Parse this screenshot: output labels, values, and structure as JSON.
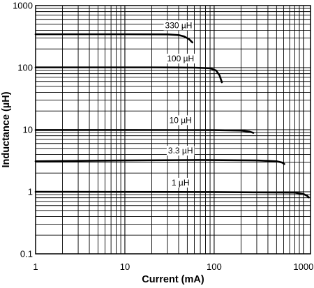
{
  "chart_data": {
    "type": "line",
    "xlabel": "Current (mA)",
    "ylabel": "Inductance (µH)",
    "x_scale": "log",
    "y_scale": "log",
    "xlim": [
      1,
      1200
    ],
    "ylim": [
      0.1,
      1000
    ],
    "grid": true,
    "x_ticks": [
      {
        "value": 1,
        "label": "1"
      },
      {
        "value": 10,
        "label": "10"
      },
      {
        "value": 100,
        "label": "100"
      },
      {
        "value": 1000,
        "label": "1000"
      }
    ],
    "y_ticks": [
      {
        "value": 1000,
        "label": "1000"
      },
      {
        "value": 100,
        "label": "100"
      },
      {
        "value": 10,
        "label": "10"
      },
      {
        "value": 1,
        "label": "1"
      },
      {
        "value": 0.1,
        "label": "0.1"
      }
    ],
    "series": [
      {
        "name": "330 µH",
        "label_at": [
          40,
          480
        ],
        "points": [
          [
            1,
            345
          ],
          [
            10,
            345
          ],
          [
            30,
            343
          ],
          [
            40,
            335
          ],
          [
            46,
            318
          ],
          [
            52,
            290
          ],
          [
            57,
            255
          ]
        ]
      },
      {
        "name": "100 µH",
        "label_at": [
          42,
          140
        ],
        "points": [
          [
            1,
            101
          ],
          [
            20,
            101
          ],
          [
            60,
            100
          ],
          [
            90,
            98
          ],
          [
            105,
            90
          ],
          [
            115,
            75
          ],
          [
            122,
            58
          ]
        ]
      },
      {
        "name": "10 µH",
        "label_at": [
          42,
          14.2
        ],
        "points": [
          [
            1,
            9.9
          ],
          [
            10,
            9.9
          ],
          [
            100,
            9.85
          ],
          [
            200,
            9.7
          ],
          [
            250,
            9.3
          ],
          [
            275,
            8.9
          ]
        ]
      },
      {
        "name": "3.3 µH",
        "label_at": [
          42,
          4.6
        ],
        "points": [
          [
            1,
            3.1
          ],
          [
            10,
            3.2
          ],
          [
            70,
            3.25
          ],
          [
            300,
            3.2
          ],
          [
            500,
            3.1
          ],
          [
            580,
            2.95
          ],
          [
            610,
            2.8
          ]
        ]
      },
      {
        "name": "1 µH",
        "label_at": [
          42,
          1.4
        ],
        "points": [
          [
            1,
            1.0
          ],
          [
            100,
            0.99
          ],
          [
            800,
            0.97
          ],
          [
            1000,
            0.92
          ],
          [
            1100,
            0.86
          ],
          [
            1150,
            0.81
          ]
        ]
      }
    ]
  }
}
